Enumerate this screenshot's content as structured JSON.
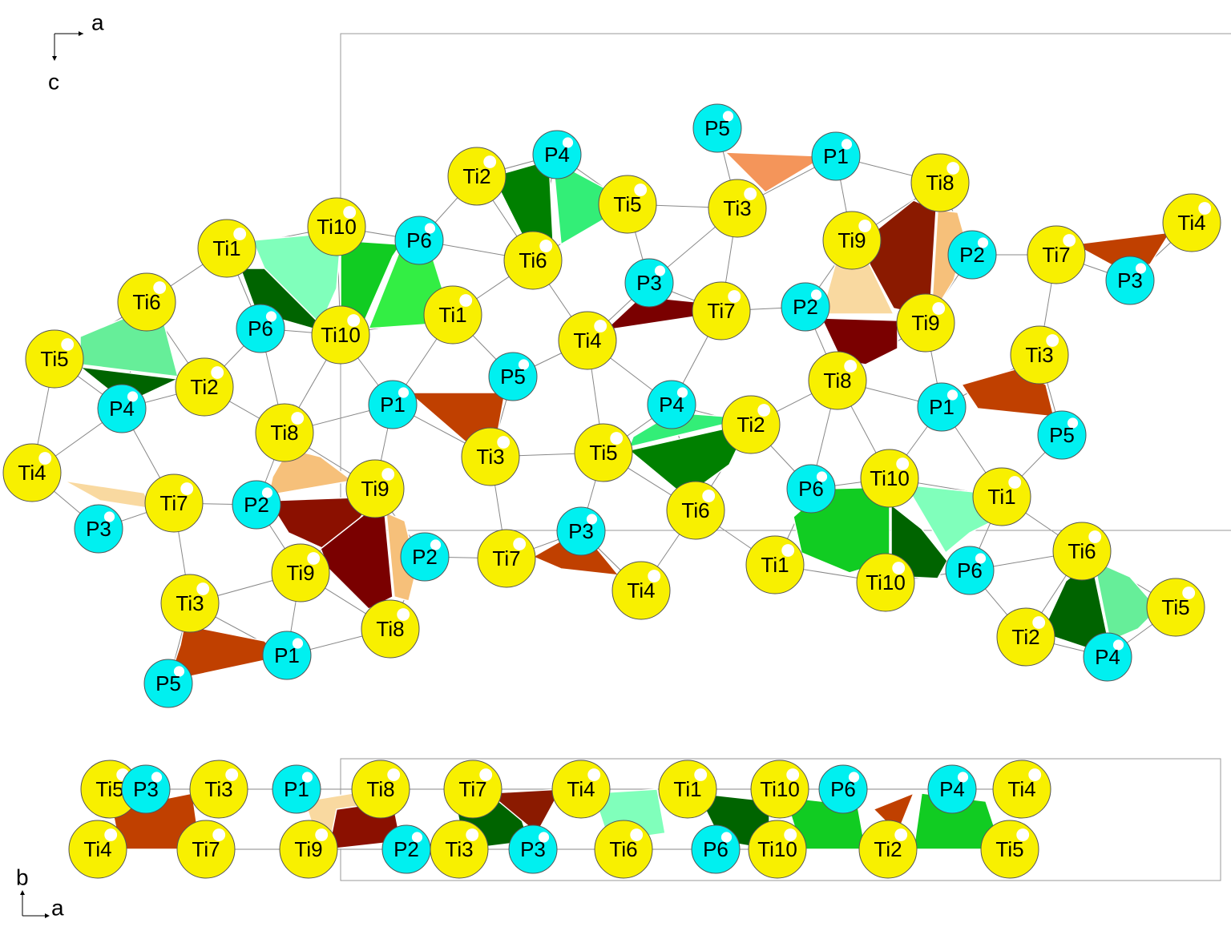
{
  "axes": {
    "top": [
      "a",
      "c"
    ],
    "bottom": [
      "b",
      "a"
    ]
  },
  "projection_ac": {
    "atoms": [
      "Ti1",
      "Ti10",
      "Ti6",
      "Ti5",
      "P6",
      "Ti10",
      "P6",
      "Ti2",
      "P4",
      "Ti5",
      "Ti6",
      "Ti1",
      "Ti2",
      "P4",
      "Ti4",
      "Ti8",
      "P1",
      "P5",
      "Ti4",
      "P3",
      "Ti7",
      "Ti3",
      "P5",
      "P1",
      "Ti8",
      "Ti9",
      "P2",
      "Ti7",
      "Ti4",
      "P3",
      "P2",
      "Ti9",
      "Ti3",
      "Ti8",
      "P1",
      "P5",
      "Ti2",
      "P4",
      "Ti5",
      "Ti3",
      "Ti9",
      "P2",
      "Ti7",
      "P3",
      "Ti6",
      "P6",
      "Ti10",
      "Ti1",
      "P3",
      "P2",
      "Ti7",
      "Ti4",
      "Ti1",
      "Ti10",
      "P6",
      "Ti6",
      "Ti5",
      "Ti2",
      "P4",
      "Ti9",
      "Ti3",
      "Ti8",
      "P1",
      "P5"
    ]
  },
  "projection_ab": {
    "atoms": [
      "Ti5",
      "P3",
      "Ti3",
      "P1",
      "Ti8",
      "Ti7",
      "Ti4",
      "Ti1",
      "Ti10",
      "P6",
      "P4",
      "Ti4",
      "Ti4",
      "Ti7",
      "Ti9",
      "P2",
      "Ti3",
      "P3",
      "Ti6",
      "P6",
      "Ti10",
      "Ti2",
      "Ti5"
    ]
  }
}
